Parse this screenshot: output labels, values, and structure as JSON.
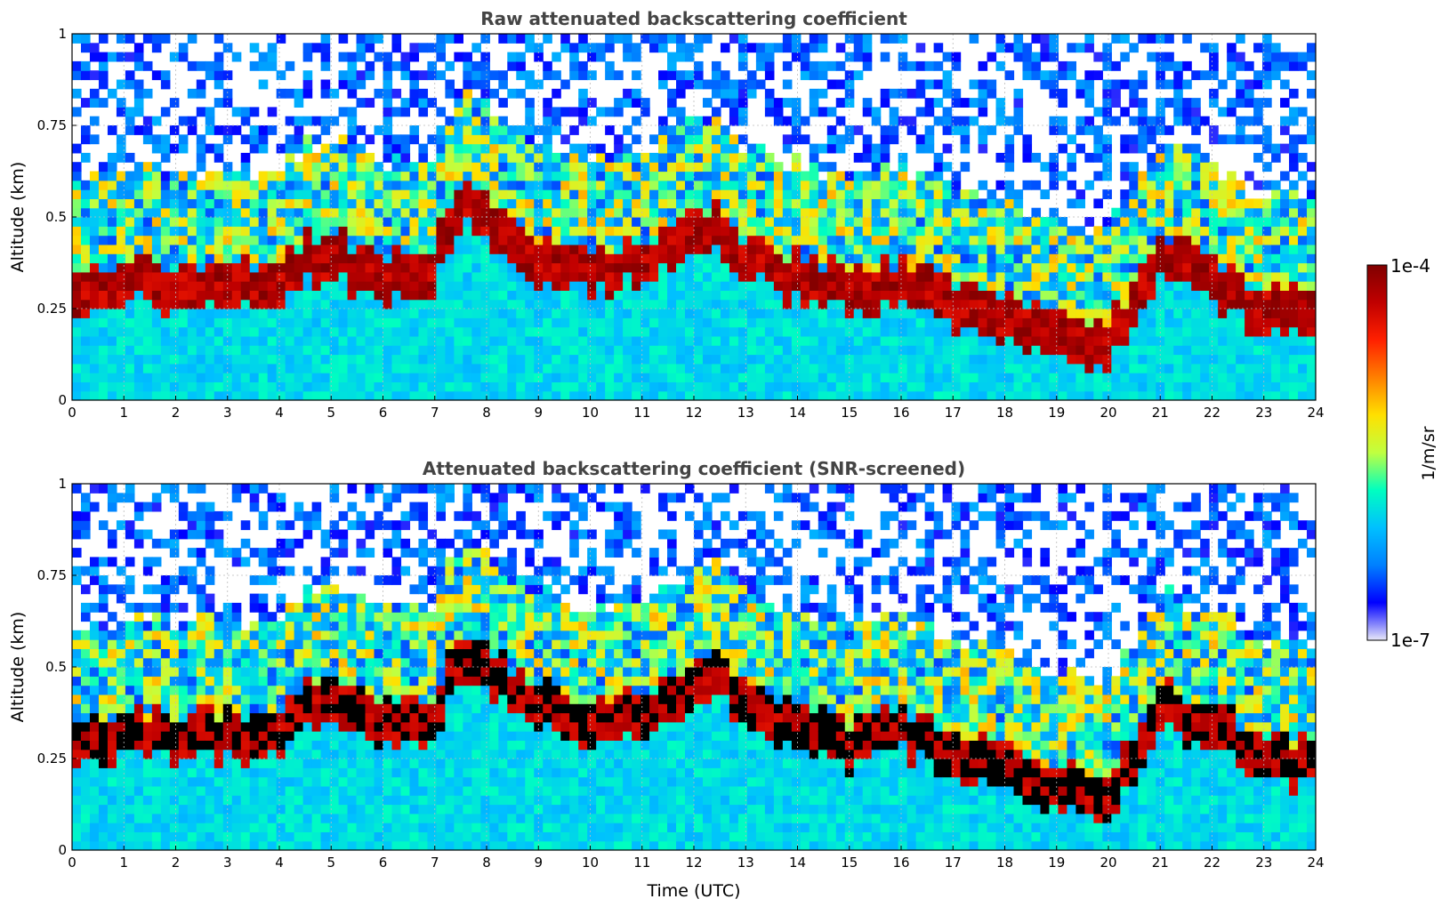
{
  "chart_data": [
    {
      "type": "heatmap",
      "title": "Raw attenuated backscattering coefficient",
      "xlabel": "",
      "ylabel": "Altitude (km)",
      "xlim": [
        0,
        24
      ],
      "ylim": [
        0,
        1
      ],
      "x_ticks": [
        "0",
        "1",
        "2",
        "3",
        "4",
        "5",
        "6",
        "7",
        "8",
        "9",
        "10",
        "11",
        "12",
        "13",
        "14",
        "15",
        "16",
        "17",
        "18",
        "19",
        "20",
        "21",
        "22",
        "23",
        "24"
      ],
      "y_ticks": [
        "0",
        "0.25",
        "0.5",
        "0.75",
        "1"
      ],
      "grid": true,
      "screened": false,
      "layer_top_km": [
        {
          "t": 0,
          "top": 0.38
        },
        {
          "t": 1,
          "top": 0.38
        },
        {
          "t": 2,
          "top": 0.38
        },
        {
          "t": 3,
          "top": 0.37
        },
        {
          "t": 4,
          "top": 0.37
        },
        {
          "t": 4.5,
          "top": 0.45
        },
        {
          "t": 5,
          "top": 0.45
        },
        {
          "t": 6,
          "top": 0.4
        },
        {
          "t": 7,
          "top": 0.42
        },
        {
          "t": 7.5,
          "top": 0.6
        },
        {
          "t": 8,
          "top": 0.55
        },
        {
          "t": 9,
          "top": 0.45
        },
        {
          "t": 10,
          "top": 0.4
        },
        {
          "t": 11,
          "top": 0.45
        },
        {
          "t": 12,
          "top": 0.5
        },
        {
          "t": 12.5,
          "top": 0.55
        },
        {
          "t": 13,
          "top": 0.45
        },
        {
          "t": 14,
          "top": 0.4
        },
        {
          "t": 15,
          "top": 0.35
        },
        {
          "t": 16,
          "top": 0.38
        },
        {
          "t": 17,
          "top": 0.32
        },
        {
          "t": 18,
          "top": 0.28
        },
        {
          "t": 19,
          "top": 0.24
        },
        {
          "t": 20,
          "top": 0.2
        },
        {
          "t": 21,
          "top": 0.45
        },
        {
          "t": 22,
          "top": 0.4
        },
        {
          "t": 23,
          "top": 0.3
        },
        {
          "t": 24,
          "top": 0.3
        }
      ]
    },
    {
      "type": "heatmap",
      "title": "Attenuated backscattering coefficient (SNR-screened)",
      "xlabel": "Time (UTC)",
      "ylabel": "Altitude (km)",
      "xlim": [
        0,
        24
      ],
      "ylim": [
        0,
        1
      ],
      "x_ticks": [
        "0",
        "1",
        "2",
        "3",
        "4",
        "5",
        "6",
        "7",
        "8",
        "9",
        "10",
        "11",
        "12",
        "13",
        "14",
        "15",
        "16",
        "17",
        "18",
        "19",
        "20",
        "21",
        "22",
        "23",
        "24"
      ],
      "y_ticks": [
        "0",
        "0.25",
        "0.5",
        "0.75",
        "1"
      ],
      "grid": true,
      "screened": true,
      "layer_top_km": [
        {
          "t": 0,
          "top": 0.38
        },
        {
          "t": 1,
          "top": 0.38
        },
        {
          "t": 2,
          "top": 0.38
        },
        {
          "t": 3,
          "top": 0.37
        },
        {
          "t": 4,
          "top": 0.37
        },
        {
          "t": 4.5,
          "top": 0.45
        },
        {
          "t": 5,
          "top": 0.45
        },
        {
          "t": 6,
          "top": 0.4
        },
        {
          "t": 7,
          "top": 0.42
        },
        {
          "t": 7.5,
          "top": 0.6
        },
        {
          "t": 8,
          "top": 0.55
        },
        {
          "t": 9,
          "top": 0.45
        },
        {
          "t": 10,
          "top": 0.4
        },
        {
          "t": 11,
          "top": 0.45
        },
        {
          "t": 12,
          "top": 0.5
        },
        {
          "t": 12.5,
          "top": 0.55
        },
        {
          "t": 13,
          "top": 0.45
        },
        {
          "t": 14,
          "top": 0.4
        },
        {
          "t": 15,
          "top": 0.35
        },
        {
          "t": 16,
          "top": 0.38
        },
        {
          "t": 17,
          "top": 0.32
        },
        {
          "t": 18,
          "top": 0.28
        },
        {
          "t": 19,
          "top": 0.24
        },
        {
          "t": 20,
          "top": 0.2
        },
        {
          "t": 21,
          "top": 0.45
        },
        {
          "t": 22,
          "top": 0.4
        },
        {
          "t": 23,
          "top": 0.3
        },
        {
          "t": 24,
          "top": 0.3
        }
      ]
    }
  ],
  "colorbar": {
    "min_label": "1e-7",
    "max_label": "1e-4",
    "unit_label": "1/m/sr",
    "scale": "log",
    "colors": [
      "#e8e8f8",
      "#0000ff",
      "#0080ff",
      "#00c0ff",
      "#00ffc0",
      "#c0ff40",
      "#ffe000",
      "#ff8000",
      "#ff2000",
      "#c00000",
      "#800000"
    ]
  }
}
